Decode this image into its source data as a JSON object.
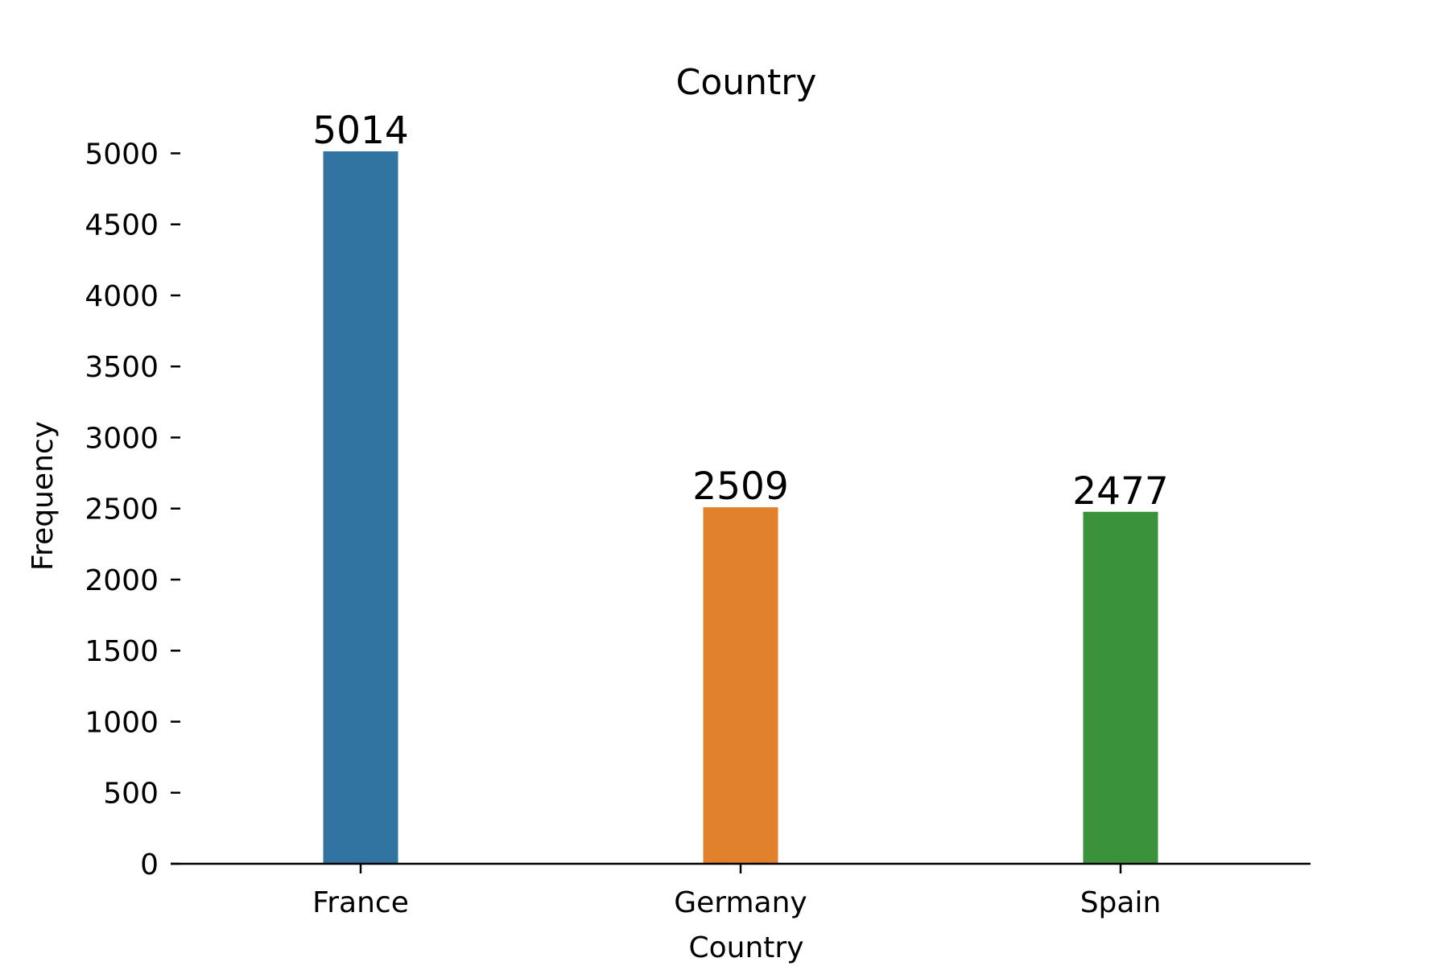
{
  "chart_data": {
    "type": "bar",
    "title": "Country",
    "xlabel": "Country",
    "ylabel": "Frequency",
    "categories": [
      "France",
      "Germany",
      "Spain"
    ],
    "values": [
      5014,
      2509,
      2477
    ],
    "data_labels": [
      "5014",
      "2509",
      "2477"
    ],
    "colors": [
      "#3274a1",
      "#e1812c",
      "#3a923a"
    ],
    "ylim": [
      0,
      5014
    ],
    "yticks": [
      0,
      500,
      1000,
      1500,
      2000,
      2500,
      3000,
      3500,
      4000,
      4500,
      5000
    ],
    "grid": false,
    "legend": "none"
  }
}
